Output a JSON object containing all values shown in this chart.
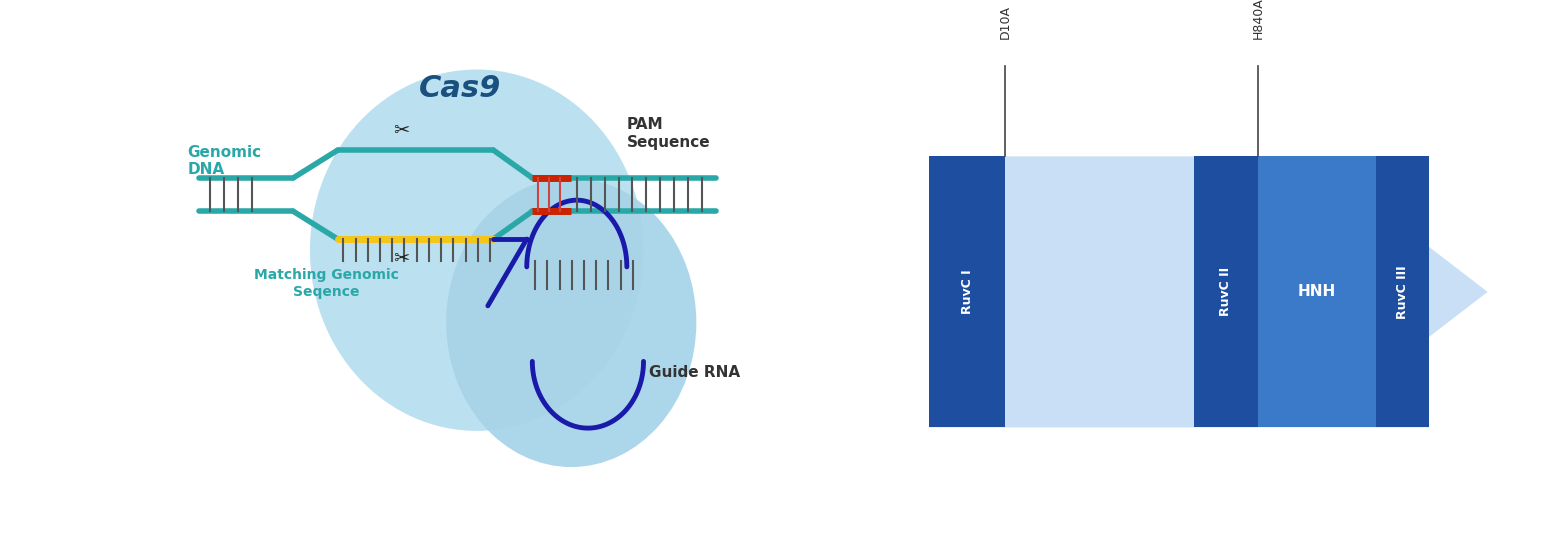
{
  "background_color": "#ffffff",
  "cas9_blob_color": "#b8dff0",
  "cas9_blob2_color": "#a8d4e8",
  "teal_color": "#2aa8a8",
  "yellow_color": "#f5c518",
  "blue_color": "#1a1aaa",
  "red_color": "#cc2200",
  "dark_gray": "#444444",
  "cas9_title": "Cas9",
  "genomic_dna_label": "Genomic\nDNA",
  "pam_label": "PAM\nSequence",
  "matching_label": "Matching Genomic\nSeqence",
  "guide_rna_label": "Guide RNA",
  "domain_bg_color": "#d0e4f5",
  "domain_dark_color": "#1e4ea0",
  "domain_medium_color": "#3a7ac8",
  "ruvc1_label": "RuvC I",
  "ruvc2_label": "RuvC II",
  "hnh_label": "HNH",
  "ruvc3_label": "RuvC III",
  "d10a_label": "D10A",
  "h840a_label": "H840A",
  "arrow_color": "#c8dff5"
}
